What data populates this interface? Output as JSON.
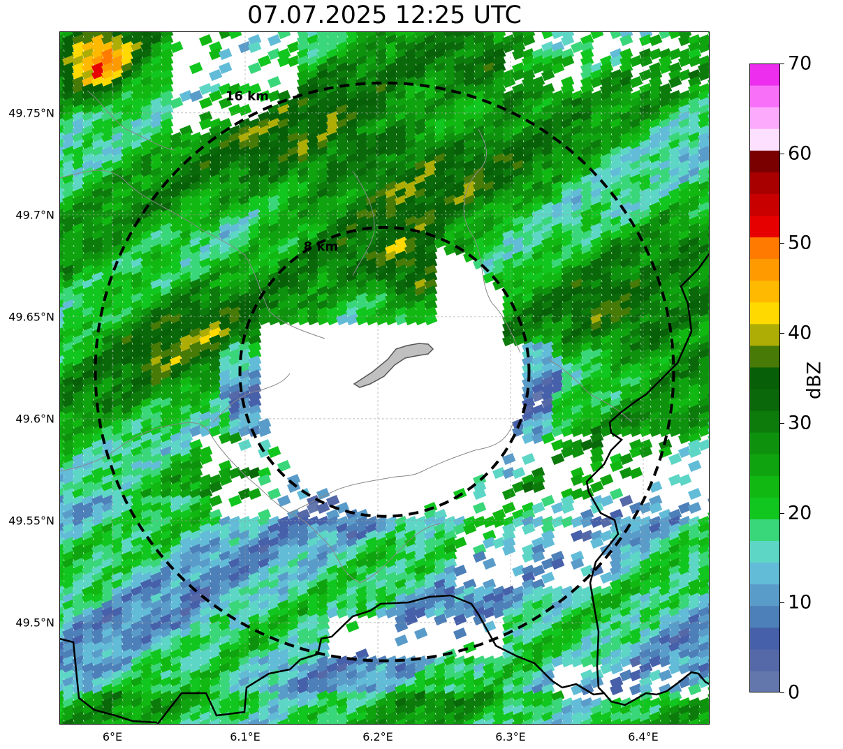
{
  "title": "07.07.2025 12:25 UTC",
  "map": {
    "lon_range": [
      5.96,
      6.45
    ],
    "lat_range": [
      49.45,
      49.79
    ],
    "center": {
      "lon": 6.205,
      "lat": 49.623
    },
    "rings": [
      {
        "radius_km": 8,
        "label": "8 km"
      },
      {
        "radius_km": 16,
        "label": "16 km"
      }
    ],
    "lon_ticks": [
      {
        "value": 6.0,
        "label": "6°E"
      },
      {
        "value": 6.1,
        "label": "6.1°E"
      },
      {
        "value": 6.2,
        "label": "6.2°E"
      },
      {
        "value": 6.3,
        "label": "6.3°E"
      },
      {
        "value": 6.4,
        "label": "6.4°E"
      }
    ],
    "lat_ticks": [
      {
        "value": 49.75,
        "label": "49.75°N"
      },
      {
        "value": 49.7,
        "label": "49.7°N"
      },
      {
        "value": 49.65,
        "label": "49.65°N"
      },
      {
        "value": 49.6,
        "label": "49.6°N"
      },
      {
        "value": 49.55,
        "label": "49.55°N"
      },
      {
        "value": 49.5,
        "label": "49.5°N"
      }
    ],
    "gridlines": true,
    "blocked_area_color": "#c0c0c0"
  },
  "colorbar": {
    "label": "dBZ",
    "min": 0,
    "max": 70,
    "ticks": [
      {
        "value": 0,
        "label": "0"
      },
      {
        "value": 10,
        "label": "10"
      },
      {
        "value": 20,
        "label": "20"
      },
      {
        "value": 30,
        "label": "30"
      },
      {
        "value": 40,
        "label": "40"
      },
      {
        "value": 50,
        "label": "50"
      },
      {
        "value": 60,
        "label": "60"
      },
      {
        "value": 70,
        "label": "70"
      }
    ],
    "colors": [
      "#6377ad",
      "#5568a8",
      "#4660aa",
      "#4d7fb8",
      "#5a9cc9",
      "#62bcd8",
      "#5dd6c6",
      "#3ad67a",
      "#11c61e",
      "#12b812",
      "#0fa30f",
      "#0e920e",
      "#0c7b0c",
      "#0a680a",
      "#076007",
      "#477a07",
      "#adad06",
      "#ffd900",
      "#ffb900",
      "#ff9a00",
      "#ff7a00",
      "#e60000",
      "#c80000",
      "#a80000",
      "#7a0000",
      "#fde0ff",
      "#fbaafc",
      "#f86ff8",
      "#ee2eee"
    ]
  }
}
